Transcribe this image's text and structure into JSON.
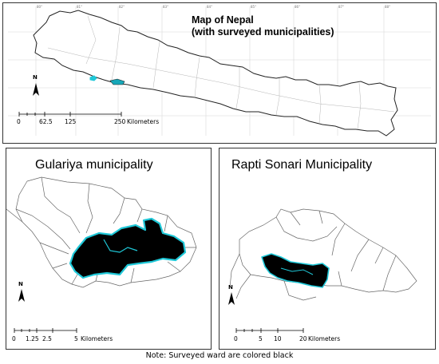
{
  "top_map": {
    "title_line1": "Map of Nepal",
    "title_line2": "(with surveyed municipalities)",
    "scale": {
      "ticks": [
        "0",
        "62.5",
        "125",
        "250"
      ],
      "unit": "Kilometers"
    },
    "north_label": "N"
  },
  "panel_gulariya": {
    "title": "Gulariya municipality",
    "scale": {
      "ticks": [
        "0",
        "1.25",
        "2.5",
        "5"
      ],
      "unit": "Kilometers"
    },
    "north_label": "N"
  },
  "panel_rapti": {
    "title": "Rapti Sonari Municipality",
    "scale": {
      "ticks": [
        "0",
        "5",
        "10",
        "20"
      ],
      "unit": "Kilometers"
    },
    "north_label": "N"
  },
  "note": "Note: Surveyed ward are colored black",
  "colors": {
    "surveyed_fill": "#000000",
    "highlight_outline": "#1fc8d8",
    "border": "#333333"
  }
}
